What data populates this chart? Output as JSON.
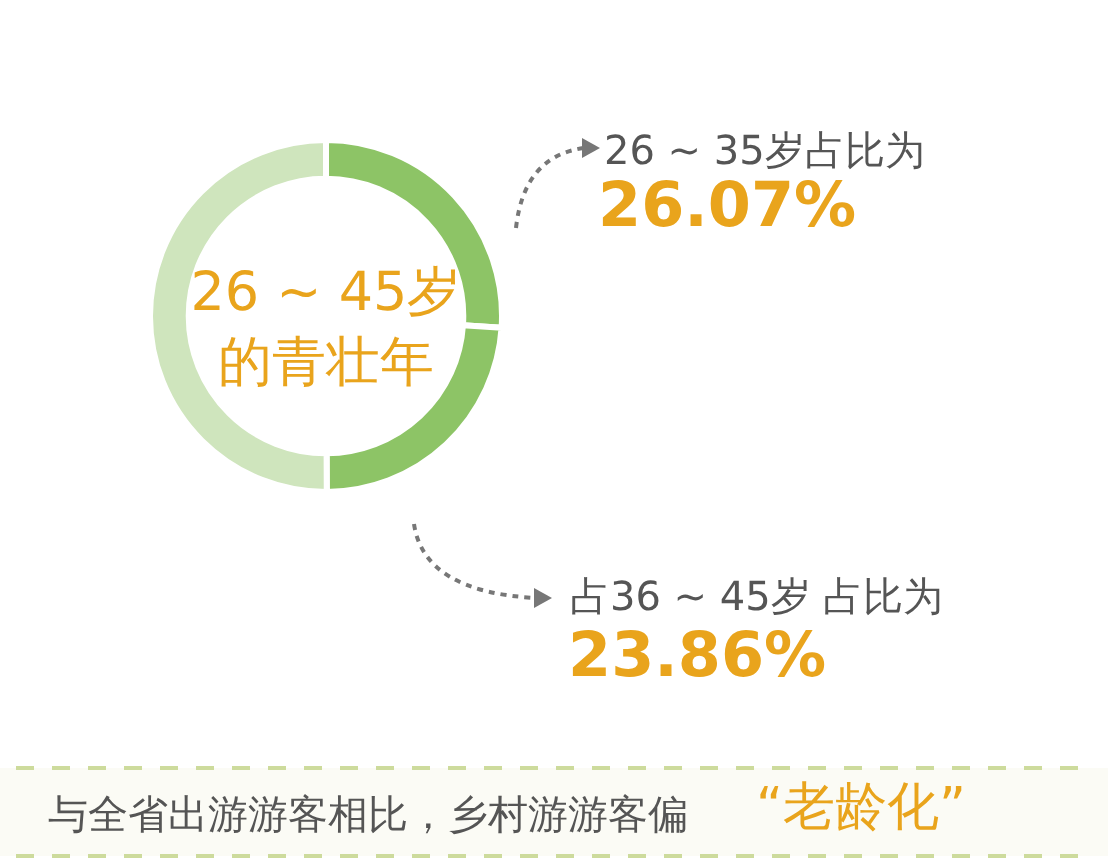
{
  "chart_data": {
    "type": "donut",
    "title": "26 ~ 45岁的青壮年",
    "categories": [
      "26 ~ 35岁占比为",
      "占36 ~ 45岁 占比为",
      null
    ],
    "values": [
      26.07,
      23.86,
      50.07
    ],
    "value_labels": [
      "26.07%",
      "23.86%",
      null
    ],
    "colors": [
      "#8dc466",
      "#8dc466",
      "#cfe5bd"
    ],
    "annotations": [
      "与全省出游游客相比，乡村游游客偏",
      "“老龄化”"
    ]
  }
}
